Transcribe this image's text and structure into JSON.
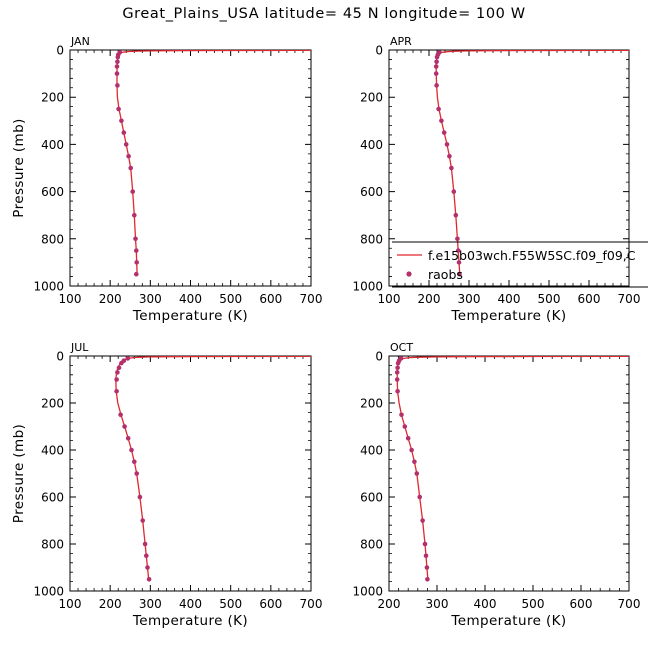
{
  "title": "Great_Plains_USA  latitude= 45 N longitude= 100 W",
  "colors": {
    "model_line": "#e0282f",
    "raobs_marker": "#b3306a",
    "axis": "#000000"
  },
  "legend": {
    "model_label": "f.e15b03wch.F55W5SC.f09_f09,C",
    "obs_label": "raobs",
    "placement": "inside APR panel, lower right"
  },
  "chart_data": [
    {
      "type": "line",
      "panel_label": "JAN",
      "xlabel": "Temperature (K)",
      "ylabel": "Pressure (mb)",
      "xlim": [
        100,
        700
      ],
      "ylim": [
        1000,
        0
      ],
      "y_inverted": true,
      "xticks": [
        100,
        200,
        300,
        400,
        500,
        600,
        700
      ],
      "yticks": [
        0,
        200,
        400,
        600,
        800,
        1000
      ],
      "series": [
        {
          "name": "f.e15b03wch.F55W5SC.f09_f09,C",
          "kind": "line",
          "x": [
            700,
            500,
            400,
            350,
            300,
            260,
            240,
            230,
            225,
            222,
            220,
            219,
            218,
            217,
            217,
            217,
            218,
            222,
            228,
            234,
            240,
            246,
            251,
            256,
            260,
            263,
            265,
            266,
            267
          ],
          "y": [
            1.5,
            2,
            2.5,
            3,
            4,
            5,
            7,
            10,
            15,
            20,
            30,
            40,
            50,
            70,
            100,
            150,
            200,
            250,
            300,
            350,
            400,
            450,
            500,
            600,
            700,
            800,
            850,
            900,
            950
          ]
        },
        {
          "name": "raobs",
          "kind": "markers",
          "x": [
            224,
            220,
            219,
            218,
            217,
            217,
            218,
            221,
            228,
            234,
            240,
            246,
            251,
            256,
            260,
            263,
            265,
            266,
            265
          ],
          "y": [
            10,
            20,
            30,
            50,
            70,
            100,
            150,
            250,
            300,
            350,
            400,
            450,
            500,
            600,
            700,
            800,
            850,
            900,
            950
          ]
        }
      ]
    },
    {
      "type": "line",
      "panel_label": "APR",
      "xlabel": "Temperature (K)",
      "ylabel": "",
      "xlim": [
        100,
        700
      ],
      "ylim": [
        1000,
        0
      ],
      "y_inverted": true,
      "xticks": [
        100,
        200,
        300,
        400,
        500,
        600,
        700
      ],
      "yticks": [
        0,
        200,
        400,
        600,
        800,
        1000
      ],
      "series": [
        {
          "name": "f.e15b03wch.F55W5SC.f09_f09,C",
          "kind": "line",
          "x": [
            700,
            500,
            400,
            350,
            300,
            265,
            245,
            232,
            226,
            222,
            220,
            219,
            218,
            218,
            218,
            219,
            221,
            225,
            231,
            238,
            245,
            251,
            256,
            262,
            267,
            271,
            273,
            275,
            277
          ],
          "y": [
            1.5,
            2,
            2.5,
            3,
            4,
            5,
            7,
            10,
            15,
            20,
            30,
            40,
            50,
            70,
            100,
            150,
            200,
            250,
            300,
            350,
            400,
            450,
            500,
            600,
            700,
            800,
            850,
            900,
            950
          ]
        },
        {
          "name": "raobs",
          "kind": "markers",
          "x": [
            226,
            222,
            220,
            219,
            218,
            218,
            219,
            224,
            231,
            238,
            245,
            251,
            256,
            262,
            267,
            271,
            273,
            275,
            276
          ],
          "y": [
            10,
            20,
            30,
            50,
            70,
            100,
            150,
            250,
            300,
            350,
            400,
            450,
            500,
            600,
            700,
            800,
            850,
            900,
            950
          ]
        }
      ]
    },
    {
      "type": "line",
      "panel_label": "JUL",
      "xlabel": "Temperature (K)",
      "ylabel": "Pressure (mb)",
      "xlim": [
        100,
        700
      ],
      "ylim": [
        1000,
        0
      ],
      "y_inverted": true,
      "xticks": [
        100,
        200,
        300,
        400,
        500,
        600,
        700
      ],
      "yticks": [
        0,
        200,
        400,
        600,
        800,
        1000
      ],
      "series": [
        {
          "name": "f.e15b03wch.F55W5SC.f09_f09,C",
          "kind": "line",
          "x": [
            700,
            500,
            400,
            350,
            300,
            275,
            258,
            245,
            237,
            231,
            226,
            222,
            219,
            216,
            214,
            215,
            219,
            227,
            236,
            245,
            253,
            260,
            266,
            274,
            281,
            287,
            290,
            293,
            296
          ],
          "y": [
            1.5,
            2,
            2.5,
            3,
            4,
            5,
            7,
            10,
            15,
            20,
            30,
            40,
            50,
            70,
            100,
            150,
            200,
            250,
            300,
            350,
            400,
            450,
            500,
            600,
            700,
            800,
            850,
            900,
            950
          ]
        },
        {
          "name": "raobs",
          "kind": "markers",
          "x": [
            244,
            234,
            228,
            222,
            218,
            216,
            216,
            226,
            236,
            245,
            253,
            260,
            266,
            274,
            281,
            287,
            290,
            293,
            297
          ],
          "y": [
            10,
            20,
            30,
            50,
            70,
            100,
            150,
            250,
            300,
            350,
            400,
            450,
            500,
            600,
            700,
            800,
            850,
            900,
            950
          ]
        }
      ]
    },
    {
      "type": "line",
      "panel_label": "OCT",
      "xlabel": "Temperature (K)",
      "ylabel": "",
      "xlim": [
        200,
        700
      ],
      "ylim": [
        1000,
        0
      ],
      "y_inverted": true,
      "xticks": [
        200,
        300,
        400,
        500,
        600,
        700
      ],
      "yticks": [
        0,
        200,
        400,
        600,
        800,
        1000
      ],
      "series": [
        {
          "name": "f.e15b03wch.F55W5SC.f09_f09,C",
          "kind": "line",
          "x": [
            700,
            500,
            400,
            350,
            300,
            265,
            243,
            231,
            225,
            221,
            219,
            218,
            217,
            217,
            217,
            218,
            221,
            226,
            233,
            240,
            247,
            253,
            258,
            264,
            270,
            275,
            277,
            279,
            281
          ],
          "y": [
            1.5,
            2,
            2.5,
            3,
            4,
            5,
            7,
            10,
            15,
            20,
            30,
            40,
            50,
            70,
            100,
            150,
            200,
            250,
            300,
            350,
            400,
            450,
            500,
            600,
            700,
            800,
            850,
            900,
            950
          ]
        },
        {
          "name": "raobs",
          "kind": "markers",
          "x": [
            225,
            221,
            219,
            218,
            217,
            217,
            218,
            226,
            233,
            240,
            247,
            253,
            258,
            264,
            270,
            275,
            277,
            279,
            280
          ],
          "y": [
            10,
            20,
            30,
            50,
            70,
            100,
            150,
            250,
            300,
            350,
            400,
            450,
            500,
            600,
            700,
            800,
            850,
            900,
            950
          ]
        }
      ]
    }
  ]
}
